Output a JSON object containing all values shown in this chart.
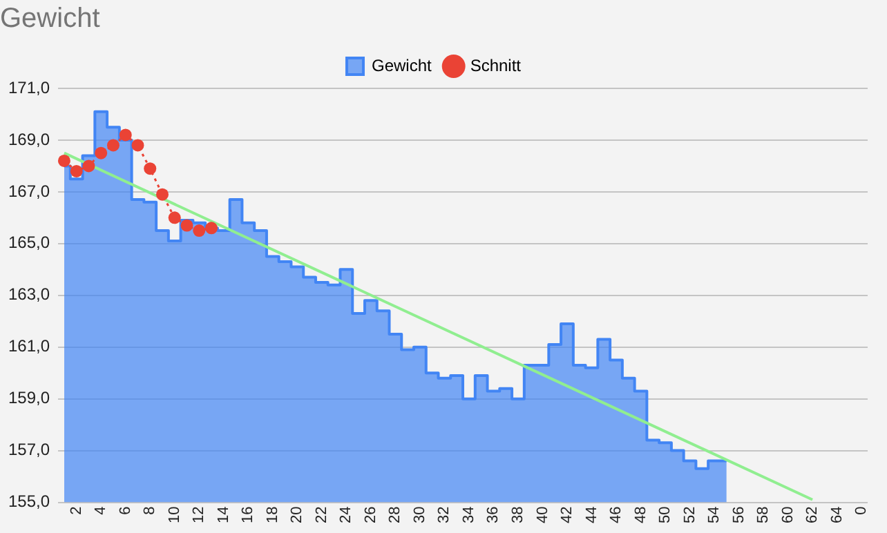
{
  "chart_data": {
    "type": "area",
    "title": "Gewicht",
    "legend": "top",
    "grid": "y",
    "categories": [
      null,
      "2",
      null,
      "4",
      null,
      "6",
      null,
      "8",
      null,
      "10",
      null,
      "12",
      null,
      "14",
      null,
      "16",
      null,
      "18",
      null,
      "20",
      null,
      "22",
      null,
      "24",
      null,
      "26",
      null,
      "28",
      null,
      "30",
      null,
      "32",
      null,
      "34",
      null,
      "36",
      null,
      "38",
      null,
      "40",
      null,
      "42",
      null,
      "44",
      null,
      "46",
      null,
      "48",
      null,
      "50",
      null,
      "52",
      null,
      "54",
      null,
      "56",
      null,
      "58",
      null,
      "60",
      null,
      "62",
      null,
      "64",
      null,
      "0"
    ],
    "ylim": [
      155,
      171
    ],
    "yticks": [
      {
        "value": 155,
        "label": "155,0"
      },
      {
        "value": 157,
        "label": "157,0"
      },
      {
        "value": 159,
        "label": "159,0"
      },
      {
        "value": 161,
        "label": "161,0"
      },
      {
        "value": 163,
        "label": "163,0"
      },
      {
        "value": 165,
        "label": "165,0"
      },
      {
        "value": 167,
        "label": "167,0"
      },
      {
        "value": 169,
        "label": "169,0"
      },
      {
        "value": 171,
        "label": "171,0"
      }
    ],
    "series": [
      {
        "name": "Gewicht",
        "color": "#4285f4",
        "values": [
          168.0,
          167.5,
          168.4,
          170.1,
          169.5,
          169.0,
          166.7,
          166.6,
          165.5,
          165.1,
          165.9,
          165.8,
          165.6,
          165.5,
          166.7,
          165.8,
          165.5,
          164.5,
          164.3,
          164.1,
          163.7,
          163.5,
          163.4,
          164.0,
          162.3,
          162.8,
          162.4,
          161.5,
          160.9,
          161.0,
          160.0,
          159.8,
          159.9,
          159.0,
          159.9,
          159.3,
          159.4,
          159.0,
          160.3,
          160.3,
          161.1,
          161.9,
          160.3,
          160.2,
          161.3,
          160.5,
          159.8,
          159.3,
          157.4,
          157.3,
          157.0,
          156.6,
          156.3,
          156.6,
          156.6,
          null,
          null,
          null,
          null,
          null,
          null,
          null,
          null,
          null,
          null,
          null
        ]
      },
      {
        "name": "Schnitt",
        "type": "line",
        "color": "#ea4335",
        "marker": "circle",
        "line_style": "dotted",
        "values": [
          168.2,
          167.8,
          168.0,
          168.5,
          168.8,
          169.2,
          168.8,
          167.9,
          166.9,
          166.0,
          165.7,
          165.5,
          165.6,
          null,
          null,
          null,
          null,
          null,
          null,
          null,
          null,
          null,
          null,
          null,
          null,
          null,
          null,
          null,
          null,
          null,
          null,
          null,
          null,
          null,
          null,
          null,
          null,
          null,
          null,
          null,
          null,
          null,
          null,
          null,
          null,
          null,
          null,
          null,
          null,
          null,
          null,
          null,
          null,
          null,
          null,
          null,
          null,
          null,
          null,
          null,
          null,
          null,
          null,
          null,
          null,
          null
        ]
      },
      {
        "type": "line",
        "color": "#90ee90",
        "marker": "none",
        "line_style": "solid",
        "values": [
          168.5,
          null,
          null,
          null,
          null,
          null,
          null,
          null,
          null,
          null,
          null,
          null,
          null,
          null,
          null,
          null,
          null,
          null,
          null,
          null,
          null,
          null,
          null,
          null,
          null,
          null,
          null,
          null,
          null,
          null,
          null,
          null,
          null,
          null,
          null,
          null,
          null,
          null,
          null,
          null,
          null,
          null,
          null,
          null,
          null,
          null,
          null,
          null,
          null,
          null,
          null,
          null,
          null,
          null,
          null,
          null,
          null,
          null,
          null,
          null,
          null,
          155.1,
          null,
          null,
          null,
          null
        ]
      }
    ]
  }
}
